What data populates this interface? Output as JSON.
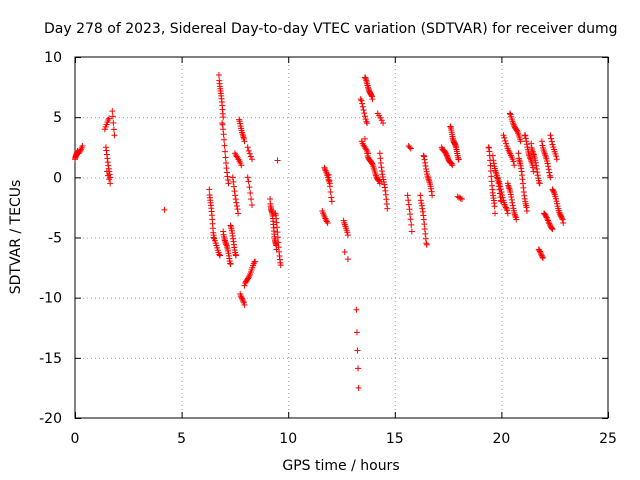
{
  "chart_data": {
    "type": "scatter",
    "title": "Day 278 of 2023, Sidereal Day-to-day VTEC variation (SDTVAR) for receiver dumg",
    "xlabel": "GPS time / hours",
    "ylabel": "SDTVAR / TECUs",
    "xlim": [
      0,
      25
    ],
    "ylim": [
      -20,
      10
    ],
    "xticks": [
      "0",
      "5",
      "10",
      "15",
      "20",
      "25"
    ],
    "yticks": [
      "10",
      "5",
      "0",
      "-5",
      "-10",
      "-15",
      "-20"
    ],
    "grid": true,
    "marker": "+",
    "series": [
      {
        "name": "SDTVAR",
        "color": "#ff0000",
        "segments": [
          {
            "x": [
              0.0,
              0.12
            ],
            "y": [
              1.5,
              2.2
            ],
            "n": 10
          },
          {
            "x": [
              0.18,
              0.35
            ],
            "y": [
              2.0,
              2.6
            ],
            "n": 6
          },
          {
            "x": [
              1.4,
              1.6
            ],
            "y": [
              4.0,
              4.9
            ],
            "n": 6
          },
          {
            "x": [
              1.45,
              1.65
            ],
            "y": [
              2.5,
              0.0
            ],
            "n": 10
          },
          {
            "x": [
              1.5,
              1.65
            ],
            "y": [
              0.5,
              -0.5
            ],
            "n": 4
          },
          {
            "x": [
              1.75,
              1.85
            ],
            "y": [
              5.5,
              3.5
            ],
            "n": 5
          },
          {
            "x": [
              6.3,
              6.5
            ],
            "y": [
              -1.0,
              -4.8
            ],
            "n": 14
          },
          {
            "x": [
              6.5,
              6.8
            ],
            "y": [
              -5.0,
              -6.5
            ],
            "n": 10
          },
          {
            "x": [
              6.75,
              6.95
            ],
            "y": [
              8.5,
              5.0
            ],
            "n": 14
          },
          {
            "x": [
              6.9,
              7.2
            ],
            "y": [
              4.5,
              -0.5
            ],
            "n": 14
          },
          {
            "x": [
              6.95,
              7.3
            ],
            "y": [
              -4.5,
              -7.2
            ],
            "n": 18
          },
          {
            "x": [
              7.3,
              7.55
            ],
            "y": [
              -4.0,
              -6.5
            ],
            "n": 14
          },
          {
            "x": [
              7.4,
              7.65
            ],
            "y": [
              0.0,
              -3.0
            ],
            "n": 10
          },
          {
            "x": [
              7.5,
              7.8
            ],
            "y": [
              2.0,
              1.0
            ],
            "n": 8
          },
          {
            "x": [
              7.7,
              7.95
            ],
            "y": [
              4.8,
              3.0
            ],
            "n": 12
          },
          {
            "x": [
              7.75,
              7.95
            ],
            "y": [
              -9.7,
              -10.6
            ],
            "n": 8
          },
          {
            "x": [
              7.95,
              8.45
            ],
            "y": [
              -9.0,
              -7.0
            ],
            "n": 16
          },
          {
            "x": [
              8.1,
              8.3
            ],
            "y": [
              2.5,
              1.5
            ],
            "n": 5
          },
          {
            "x": [
              8.1,
              8.3
            ],
            "y": [
              0.0,
              -2.3
            ],
            "n": 6
          },
          {
            "x": [
              9.15,
              9.45
            ],
            "y": [
              -1.8,
              -6.0
            ],
            "n": 24
          },
          {
            "x": [
              9.4,
              9.65
            ],
            "y": [
              -3.0,
              -7.3
            ],
            "n": 14
          },
          {
            "x": [
              11.6,
              11.85
            ],
            "y": [
              -2.8,
              -3.8
            ],
            "n": 8
          },
          {
            "x": [
              11.7,
              11.95
            ],
            "y": [
              0.8,
              -0.5
            ],
            "n": 10
          },
          {
            "x": [
              11.9,
              12.05
            ],
            "y": [
              0.2,
              -2.0
            ],
            "n": 6
          },
          {
            "x": [
              12.6,
              12.8
            ],
            "y": [
              -3.6,
              -4.8
            ],
            "n": 8
          },
          {
            "x": [
              12.65,
              12.8
            ],
            "y": [
              -6.2,
              -6.8
            ],
            "n": 2
          },
          {
            "x": [
              13.2,
              13.3
            ],
            "y": [
              -11.0,
              -17.5
            ],
            "n": 5
          },
          {
            "x": [
              13.4,
              13.7
            ],
            "y": [
              6.5,
              4.5
            ],
            "n": 10
          },
          {
            "x": [
              13.45,
              13.75
            ],
            "y": [
              3.0,
              2.0
            ],
            "n": 8
          },
          {
            "x": [
              13.6,
              13.95
            ],
            "y": [
              8.3,
              6.5
            ],
            "n": 18
          },
          {
            "x": [
              13.7,
              14.3
            ],
            "y": [
              2.0,
              -0.5
            ],
            "n": 24
          },
          {
            "x": [
              14.2,
              14.45
            ],
            "y": [
              5.3,
              4.5
            ],
            "n": 5
          },
          {
            "x": [
              14.3,
              14.65
            ],
            "y": [
              2.0,
              -2.6
            ],
            "n": 16
          },
          {
            "x": [
              15.6,
              15.8
            ],
            "y": [
              -1.5,
              -4.5
            ],
            "n": 8
          },
          {
            "x": [
              15.65,
              15.75
            ],
            "y": [
              2.6,
              2.4
            ],
            "n": 3
          },
          {
            "x": [
              16.2,
              16.5
            ],
            "y": [
              -1.5,
              -5.6
            ],
            "n": 14
          },
          {
            "x": [
              16.35,
              16.75
            ],
            "y": [
              1.8,
              -1.5
            ],
            "n": 18
          },
          {
            "x": [
              17.2,
              17.7
            ],
            "y": [
              2.5,
              1.0
            ],
            "n": 22
          },
          {
            "x": [
              17.6,
              18.0
            ],
            "y": [
              4.2,
              1.5
            ],
            "n": 24
          },
          {
            "x": [
              17.95,
              18.15
            ],
            "y": [
              -1.6,
              -1.8
            ],
            "n": 4
          },
          {
            "x": [
              19.4,
              19.7
            ],
            "y": [
              2.5,
              -3.0
            ],
            "n": 18
          },
          {
            "x": [
              19.6,
              20.0
            ],
            "y": [
              1.8,
              -2.0
            ],
            "n": 18
          },
          {
            "x": [
              19.8,
              20.3
            ],
            "y": [
              0.0,
              -3.0
            ],
            "n": 18
          },
          {
            "x": [
              20.1,
              20.6
            ],
            "y": [
              3.5,
              1.0
            ],
            "n": 14
          },
          {
            "x": [
              20.3,
              20.7
            ],
            "y": [
              -0.5,
              -3.5
            ],
            "n": 18
          },
          {
            "x": [
              20.4,
              20.9
            ],
            "y": [
              5.3,
              3.0
            ],
            "n": 18
          },
          {
            "x": [
              20.8,
              21.2
            ],
            "y": [
              2.0,
              -2.8
            ],
            "n": 20
          },
          {
            "x": [
              21.1,
              21.5
            ],
            "y": [
              3.5,
              0.5
            ],
            "n": 18
          },
          {
            "x": [
              21.4,
              21.8
            ],
            "y": [
              2.8,
              -0.5
            ],
            "n": 18
          },
          {
            "x": [
              21.75,
              21.95
            ],
            "y": [
              -6.0,
              -6.7
            ],
            "n": 8
          },
          {
            "x": [
              21.9,
              22.3
            ],
            "y": [
              3.0,
              0.0
            ],
            "n": 16
          },
          {
            "x": [
              22.0,
              22.4
            ],
            "y": [
              -3.0,
              -4.3
            ],
            "n": 14
          },
          {
            "x": [
              22.3,
              22.6
            ],
            "y": [
              3.5,
              1.5
            ],
            "n": 10
          },
          {
            "x": [
              22.4,
              22.9
            ],
            "y": [
              -1.0,
              -3.8
            ],
            "n": 20
          }
        ],
        "points": [
          [
            4.2,
            -2.7
          ],
          [
            9.5,
            1.4
          ],
          [
            13.6,
            3.2
          ]
        ]
      }
    ]
  }
}
